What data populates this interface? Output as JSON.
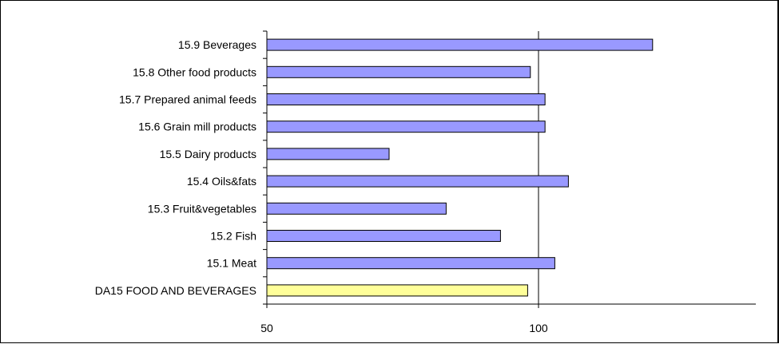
{
  "chart_data": {
    "type": "bar",
    "orientation": "horizontal",
    "categories": [
      "15.9 Beverages",
      "15.8 Other food products",
      "15.7 Prepared animal feeds",
      "15.6 Grain mill products",
      "15.5 Dairy products",
      "15.4 Oils&fats",
      "15.3 Fruit&vegetables",
      "15.2 Fish",
      "15.1 Meat",
      "DA15 FOOD AND BEVERAGES"
    ],
    "values": [
      121.0,
      98.5,
      101.2,
      101.2,
      72.5,
      105.5,
      83.0,
      93.0,
      103.0,
      98.0
    ],
    "bar_colors": [
      "#9999ff",
      "#9999ff",
      "#9999ff",
      "#9999ff",
      "#9999ff",
      "#9999ff",
      "#9999ff",
      "#9999ff",
      "#9999ff",
      "#ffff99"
    ],
    "xlim": [
      50,
      140
    ],
    "xticks": [
      "50",
      "100"
    ],
    "xtick_values": [
      50,
      100
    ],
    "gridlines_at": [
      100
    ],
    "title": "",
    "xlabel": "",
    "ylabel": ""
  }
}
